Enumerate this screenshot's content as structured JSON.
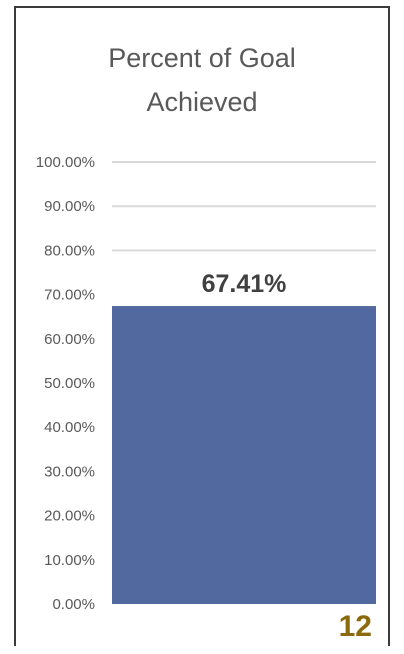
{
  "chart_data": {
    "type": "bar",
    "title_line1": "Percent of Goal",
    "title_line2": "Achieved",
    "categories": [
      ""
    ],
    "values": [
      67.41
    ],
    "data_label": "67.41%",
    "ylim": [
      0,
      100
    ],
    "yticks": [
      {
        "value": 0,
        "label": "0.00%"
      },
      {
        "value": 10,
        "label": "10.00%"
      },
      {
        "value": 20,
        "label": "20.00%"
      },
      {
        "value": 30,
        "label": "30.00%"
      },
      {
        "value": 40,
        "label": "40.00%"
      },
      {
        "value": 50,
        "label": "50.00%"
      },
      {
        "value": 60,
        "label": "60.00%"
      },
      {
        "value": 70,
        "label": "70.00%"
      },
      {
        "value": 80,
        "label": "80.00%"
      },
      {
        "value": 90,
        "label": "90.00%"
      },
      {
        "value": 100,
        "label": "100.00%"
      }
    ],
    "gridlines_visible_at": [
      80,
      90,
      100
    ],
    "bar_color": "#51699e",
    "grid_color": "#d9d9d9",
    "tick_color": "#595959",
    "data_label_color": "#404040"
  },
  "page_number": "12"
}
